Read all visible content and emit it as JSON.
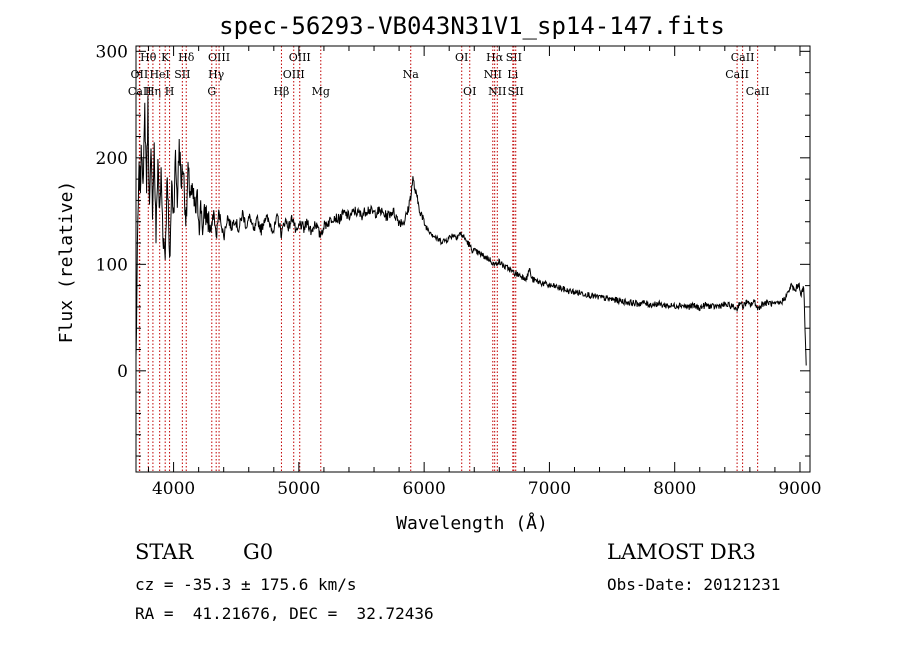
{
  "chart_data": {
    "type": "line",
    "title": "spec-56293-VB043N31V1_sp14-147.fits",
    "xlabel": "Wavelength (Å)",
    "ylabel": "Flux (relative)",
    "xlim": [
      3700,
      9080
    ],
    "ylim": [
      -95,
      305
    ],
    "xticks": [
      4000,
      5000,
      6000,
      7000,
      8000,
      9000
    ],
    "yticks": [
      0,
      100,
      200,
      300
    ],
    "line_color": "#000000",
    "marker_color": "#c00000",
    "spectrum": [
      [
        3700,
        10
      ],
      [
        3715,
        140
      ],
      [
        3725,
        185
      ],
      [
        3735,
        175
      ],
      [
        3745,
        210
      ],
      [
        3760,
        180
      ],
      [
        3770,
        245
      ],
      [
        3785,
        175
      ],
      [
        3795,
        250
      ],
      [
        3808,
        150
      ],
      [
        3820,
        200
      ],
      [
        3832,
        155
      ],
      [
        3845,
        210
      ],
      [
        3860,
        125
      ],
      [
        3875,
        200
      ],
      [
        3889,
        145
      ],
      [
        3900,
        185
      ],
      [
        3915,
        130
      ],
      [
        3933,
        110
      ],
      [
        3950,
        190
      ],
      [
        3968,
        95
      ],
      [
        3985,
        175
      ],
      [
        4000,
        150
      ],
      [
        4015,
        200
      ],
      [
        4030,
        160
      ],
      [
        4045,
        215
      ],
      [
        4060,
        175
      ],
      [
        4075,
        195
      ],
      [
        4090,
        160
      ],
      [
        4101,
        140
      ],
      [
        4115,
        185
      ],
      [
        4130,
        170
      ],
      [
        4145,
        165
      ],
      [
        4160,
        160
      ],
      [
        4175,
        150
      ],
      [
        4190,
        160
      ],
      [
        4205,
        140
      ],
      [
        4220,
        155
      ],
      [
        4235,
        130
      ],
      [
        4250,
        150
      ],
      [
        4265,
        145
      ],
      [
        4280,
        140
      ],
      [
        4300,
        130
      ],
      [
        4320,
        150
      ],
      [
        4340,
        125
      ],
      [
        4360,
        148
      ],
      [
        4380,
        140
      ],
      [
        4400,
        125
      ],
      [
        4430,
        145
      ],
      [
        4460,
        135
      ],
      [
        4490,
        143
      ],
      [
        4520,
        132
      ],
      [
        4550,
        148
      ],
      [
        4580,
        136
      ],
      [
        4610,
        145
      ],
      [
        4640,
        130
      ],
      [
        4670,
        142
      ],
      [
        4700,
        132
      ],
      [
        4730,
        145
      ],
      [
        4760,
        140
      ],
      [
        4800,
        132
      ],
      [
        4830,
        145
      ],
      [
        4861,
        128
      ],
      [
        4890,
        142
      ],
      [
        4920,
        135
      ],
      [
        4950,
        145
      ],
      [
        4980,
        128
      ],
      [
        5010,
        138
      ],
      [
        5040,
        133
      ],
      [
        5070,
        140
      ],
      [
        5100,
        130
      ],
      [
        5130,
        140
      ],
      [
        5167,
        127
      ],
      [
        5200,
        136
      ],
      [
        5240,
        140
      ],
      [
        5280,
        145
      ],
      [
        5320,
        142
      ],
      [
        5360,
        148
      ],
      [
        5400,
        145
      ],
      [
        5450,
        150
      ],
      [
        5500,
        146
      ],
      [
        5550,
        152
      ],
      [
        5600,
        148
      ],
      [
        5650,
        150
      ],
      [
        5700,
        145
      ],
      [
        5750,
        150
      ],
      [
        5800,
        140
      ],
      [
        5840,
        140
      ],
      [
        5870,
        150
      ],
      [
        5893,
        165
      ],
      [
        5910,
        180
      ],
      [
        5930,
        168
      ],
      [
        5950,
        158
      ],
      [
        5970,
        150
      ],
      [
        5990,
        142
      ],
      [
        6010,
        136
      ],
      [
        6040,
        132
      ],
      [
        6070,
        128
      ],
      [
        6100,
        124
      ],
      [
        6130,
        122
      ],
      [
        6160,
        122
      ],
      [
        6190,
        124
      ],
      [
        6230,
        128
      ],
      [
        6260,
        126
      ],
      [
        6290,
        129
      ],
      [
        6320,
        125
      ],
      [
        6350,
        120
      ],
      [
        6380,
        114
      ],
      [
        6410,
        112
      ],
      [
        6440,
        110
      ],
      [
        6470,
        108
      ],
      [
        6500,
        106
      ],
      [
        6530,
        104
      ],
      [
        6563,
        99
      ],
      [
        6590,
        103
      ],
      [
        6620,
        100
      ],
      [
        6650,
        97
      ],
      [
        6680,
        96
      ],
      [
        6700,
        93
      ],
      [
        6730,
        91
      ],
      [
        6760,
        90
      ],
      [
        6790,
        88
      ],
      [
        6820,
        87
      ],
      [
        6840,
        96
      ],
      [
        6860,
        86
      ],
      [
        6900,
        84
      ],
      [
        6950,
        82
      ],
      [
        7000,
        80
      ],
      [
        7050,
        79
      ],
      [
        7100,
        77
      ],
      [
        7150,
        75
      ],
      [
        7200,
        74
      ],
      [
        7250,
        73
      ],
      [
        7300,
        72
      ],
      [
        7350,
        70
      ],
      [
        7400,
        69
      ],
      [
        7450,
        68
      ],
      [
        7500,
        67
      ],
      [
        7550,
        66
      ],
      [
        7600,
        65
      ],
      [
        7650,
        64
      ],
      [
        7700,
        63
      ],
      [
        7750,
        64
      ],
      [
        7800,
        62
      ],
      [
        7850,
        63
      ],
      [
        7900,
        62
      ],
      [
        7950,
        61
      ],
      [
        8000,
        61
      ],
      [
        8050,
        62
      ],
      [
        8100,
        60
      ],
      [
        8150,
        61
      ],
      [
        8200,
        59
      ],
      [
        8250,
        62
      ],
      [
        8300,
        60
      ],
      [
        8350,
        61
      ],
      [
        8400,
        62
      ],
      [
        8450,
        61
      ],
      [
        8498,
        58
      ],
      [
        8520,
        65
      ],
      [
        8542,
        60
      ],
      [
        8570,
        64
      ],
      [
        8600,
        62
      ],
      [
        8640,
        65
      ],
      [
        8662,
        58
      ],
      [
        8700,
        63
      ],
      [
        8750,
        64
      ],
      [
        8800,
        62
      ],
      [
        8850,
        64
      ],
      [
        8900,
        72
      ],
      [
        8930,
        80
      ],
      [
        8960,
        75
      ],
      [
        8990,
        82
      ],
      [
        9010,
        72
      ],
      [
        9030,
        78
      ],
      [
        9040,
        40
      ],
      [
        9050,
        5
      ]
    ],
    "lines": [
      {
        "label": "Hθ",
        "wl": 3798,
        "row": 1
      },
      {
        "label": "OII",
        "wl": 3727,
        "row": 2
      },
      {
        "label": "CaII",
        "wl": 3730,
        "row": 3
      },
      {
        "label": "Hη",
        "wl": 3835,
        "row": 3
      },
      {
        "label": "HeI",
        "wl": 3889,
        "row": 2
      },
      {
        "label": "K",
        "wl": 3933,
        "row": 1
      },
      {
        "label": "SII",
        "wl": 4070,
        "row": 2
      },
      {
        "label": "H",
        "wl": 3968,
        "row": 3
      },
      {
        "label": "Hδ",
        "wl": 4101,
        "row": 1
      },
      {
        "label": "OIII",
        "wl": 4363,
        "row": 1
      },
      {
        "label": "Hγ",
        "wl": 4340,
        "row": 2
      },
      {
        "label": "G",
        "wl": 4305,
        "row": 3
      },
      {
        "label": "Hβ",
        "wl": 4861,
        "row": 3
      },
      {
        "label": "OIII",
        "wl": 5007,
        "row": 1
      },
      {
        "label": "OIII",
        "wl": 4959,
        "row": 2
      },
      {
        "label": "Mg",
        "wl": 5175,
        "row": 3
      },
      {
        "label": "Na",
        "wl": 5893,
        "row": 2
      },
      {
        "label": "OI",
        "wl": 6300,
        "row": 1
      },
      {
        "label": "OI",
        "wl": 6364,
        "row": 3
      },
      {
        "label": "Hα",
        "wl": 6563,
        "row": 1
      },
      {
        "label": "SII",
        "wl": 6716,
        "row": 1
      },
      {
        "label": "NII",
        "wl": 6548,
        "row": 2
      },
      {
        "label": "Li",
        "wl": 6708,
        "row": 2
      },
      {
        "label": "NII",
        "wl": 6584,
        "row": 3
      },
      {
        "label": "SII",
        "wl": 6731,
        "row": 3
      },
      {
        "label": "CaII",
        "wl": 8542,
        "row": 1
      },
      {
        "label": "CaII",
        "wl": 8498,
        "row": 2
      },
      {
        "label": "CaII",
        "wl": 8662,
        "row": 3
      }
    ]
  },
  "info": {
    "class": "STAR",
    "subclass": "G0",
    "survey": "LAMOST DR3",
    "cz": "cz = -35.3 ± 175.6 km/s",
    "obs_date": "Obs-Date: 20121231",
    "radec": "RA =  41.21676, DEC =  32.72436"
  }
}
